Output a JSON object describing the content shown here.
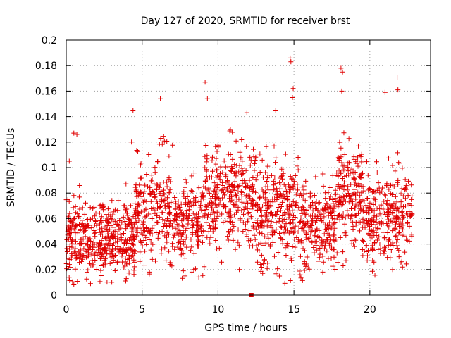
{
  "chart_data": {
    "type": "scatter",
    "title": "Day 127 of 2020, SRMTID for receiver brst",
    "xlabel": "GPS time / hours",
    "ylabel": "SRMTID / TECUs",
    "xlim": [
      0,
      24
    ],
    "ylim": [
      0,
      0.2
    ],
    "xticks": [
      0,
      5,
      10,
      15,
      20
    ],
    "xtick_labels": [
      "0",
      "5",
      "10",
      "15",
      "20"
    ],
    "yticks": [
      0,
      0.02,
      0.04,
      0.06,
      0.08,
      0.1,
      0.12,
      0.14,
      0.16,
      0.18,
      0.2
    ],
    "ytick_labels": [
      "0",
      "0.02",
      "0.04",
      "0.06",
      "0.08",
      "0.1",
      "0.12",
      "0.14",
      "0.16",
      "0.18",
      "0.2"
    ],
    "grid": true,
    "marker": "plus",
    "color": "#e00000",
    "notable_points": [
      {
        "x": 14.75,
        "y": 0.186
      },
      {
        "x": 14.8,
        "y": 0.183
      },
      {
        "x": 18.1,
        "y": 0.178
      },
      {
        "x": 18.2,
        "y": 0.175
      },
      {
        "x": 21.8,
        "y": 0.171
      },
      {
        "x": 9.15,
        "y": 0.167
      },
      {
        "x": 14.95,
        "y": 0.162
      },
      {
        "x": 21.85,
        "y": 0.161
      },
      {
        "x": 18.15,
        "y": 0.16
      },
      {
        "x": 21.0,
        "y": 0.159
      },
      {
        "x": 6.2,
        "y": 0.154
      },
      {
        "x": 9.3,
        "y": 0.154
      },
      {
        "x": 14.9,
        "y": 0.155
      },
      {
        "x": 4.4,
        "y": 0.145
      },
      {
        "x": 13.8,
        "y": 0.145
      },
      {
        "x": 11.9,
        "y": 0.143
      },
      {
        "x": 0.5,
        "y": 0.127
      },
      {
        "x": 0.7,
        "y": 0.126
      },
      {
        "x": 4.3,
        "y": 0.12
      },
      {
        "x": 0.2,
        "y": 0.105
      },
      {
        "x": 0.5,
        "y": 0.008
      },
      {
        "x": 1.6,
        "y": 0.009
      },
      {
        "x": 3.0,
        "y": 0.01
      },
      {
        "x": 16.9,
        "y": 0.018
      },
      {
        "x": 21.5,
        "y": 0.02
      },
      {
        "x": 11.4,
        "y": 0.02
      },
      {
        "x": 8.4,
        "y": 0.02
      },
      {
        "x": 12.8,
        "y": 0.024
      }
    ],
    "zero_point": {
      "x": 12.2,
      "y": 0
    },
    "scatter_clusters": [
      {
        "x_range": [
          0,
          4.5
        ],
        "y_center": 0.045,
        "y_spread": 0.025,
        "count": 460,
        "seed": 11
      },
      {
        "x_range": [
          4.5,
          7.0
        ],
        "y_center": 0.07,
        "y_spread": 0.035,
        "count": 230,
        "seed": 23
      },
      {
        "x_range": [
          7.0,
          9.0
        ],
        "y_center": 0.055,
        "y_spread": 0.028,
        "count": 170,
        "seed": 37
      },
      {
        "x_range": [
          9.0,
          12.5
        ],
        "y_center": 0.075,
        "y_spread": 0.035,
        "count": 320,
        "seed": 41
      },
      {
        "x_range": [
          12.5,
          15.5
        ],
        "y_center": 0.065,
        "y_spread": 0.035,
        "count": 290,
        "seed": 53
      },
      {
        "x_range": [
          15.5,
          17.8
        ],
        "y_center": 0.055,
        "y_spread": 0.025,
        "count": 220,
        "seed": 67
      },
      {
        "x_range": [
          17.8,
          19.5
        ],
        "y_center": 0.08,
        "y_spread": 0.035,
        "count": 170,
        "seed": 71
      },
      {
        "x_range": [
          19.5,
          22.8
        ],
        "y_center": 0.06,
        "y_spread": 0.03,
        "count": 300,
        "seed": 83
      }
    ]
  }
}
